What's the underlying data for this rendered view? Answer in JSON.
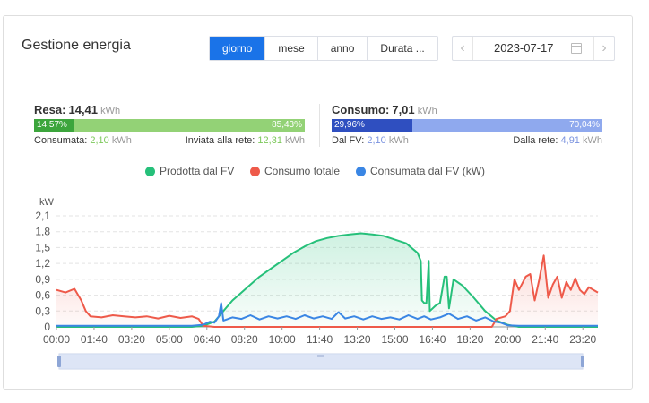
{
  "page": {
    "title": "Gestione energia"
  },
  "tabs": [
    {
      "label": "giorno",
      "active": true
    },
    {
      "label": "mese",
      "active": false
    },
    {
      "label": "anno",
      "active": false
    },
    {
      "label": "Durata ...",
      "active": false
    }
  ],
  "date": {
    "value": "2023-07-17"
  },
  "yield": {
    "label": "Resa:",
    "value": "14,41",
    "unit": "kWh",
    "left_pct": "14,57%",
    "right_pct": "85,43%",
    "left_fraction": 0.1457,
    "consumed_label": "Consumata:",
    "consumed_value": "2,10",
    "consumed_unit": "kWh",
    "fed_label": "Inviata alla rete:",
    "fed_value": "12,31",
    "fed_unit": "kWh",
    "colors": {
      "dark": "#3ca53c",
      "light": "#93d276",
      "value_text": "#7cc85a"
    }
  },
  "consumption": {
    "label": "Consumo:",
    "value": "7,01",
    "unit": "kWh",
    "left_pct": "29,96%",
    "right_pct": "70,04%",
    "left_fraction": 0.2996,
    "fv_label": "Dal FV:",
    "fv_value": "2,10",
    "fv_unit": "kWh",
    "grid_label": "Dalla rete:",
    "grid_value": "4,91",
    "grid_unit": "kWh",
    "colors": {
      "dark": "#2f4fc0",
      "light": "#8fa9ee",
      "value_text": "#7b93df"
    }
  },
  "legend": [
    {
      "label": "Prodotta dal FV",
      "color": "#26c07a"
    },
    {
      "label": "Consumo totale",
      "color": "#ee5a4a"
    },
    {
      "label": "Consumata dal FV (kW)",
      "color": "#3a86e4"
    }
  ],
  "chart_data": {
    "type": "line",
    "ylabel": "kW",
    "ylim": [
      0,
      2.1
    ],
    "yticks": [
      "0",
      "0,3",
      "0,6",
      "0,9",
      "1,2",
      "1,5",
      "1,8",
      "2,1"
    ],
    "xticks": [
      "00:00",
      "01:40",
      "03:20",
      "05:00",
      "06:40",
      "08:20",
      "10:00",
      "11:40",
      "13:20",
      "15:00",
      "16:40",
      "18:20",
      "20:00",
      "21:40",
      "23:20"
    ],
    "x_unit": "hour",
    "grid": true,
    "legend_position": "top",
    "series": [
      {
        "name": "Prodotta dal FV",
        "color": "#26c07a",
        "area": true,
        "points": [
          [
            0,
            0
          ],
          [
            6.0,
            0
          ],
          [
            6.5,
            0.02
          ],
          [
            7.0,
            0.1
          ],
          [
            7.4,
            0.3
          ],
          [
            7.8,
            0.5
          ],
          [
            8.2,
            0.65
          ],
          [
            8.6,
            0.8
          ],
          [
            9.0,
            0.95
          ],
          [
            9.5,
            1.1
          ],
          [
            10.0,
            1.25
          ],
          [
            10.5,
            1.4
          ],
          [
            11.0,
            1.52
          ],
          [
            11.5,
            1.62
          ],
          [
            12.0,
            1.68
          ],
          [
            12.5,
            1.72
          ],
          [
            13.0,
            1.75
          ],
          [
            13.5,
            1.77
          ],
          [
            14.0,
            1.75
          ],
          [
            14.5,
            1.72
          ],
          [
            15.0,
            1.65
          ],
          [
            15.5,
            1.58
          ],
          [
            16.0,
            1.4
          ],
          [
            16.15,
            1.25
          ],
          [
            16.2,
            0.5
          ],
          [
            16.3,
            0.45
          ],
          [
            16.4,
            0.45
          ],
          [
            16.5,
            1.25
          ],
          [
            16.55,
            0.3
          ],
          [
            16.8,
            0.4
          ],
          [
            17.0,
            0.45
          ],
          [
            17.2,
            0.95
          ],
          [
            17.3,
            0.95
          ],
          [
            17.4,
            0.35
          ],
          [
            17.6,
            0.9
          ],
          [
            18.0,
            0.78
          ],
          [
            18.5,
            0.55
          ],
          [
            19.0,
            0.3
          ],
          [
            19.5,
            0.12
          ],
          [
            20.0,
            0.04
          ],
          [
            20.5,
            0
          ],
          [
            24,
            0
          ]
        ]
      },
      {
        "name": "Consumo totale",
        "color": "#ee5a4a",
        "area": true,
        "points": [
          [
            0,
            0.7
          ],
          [
            0.4,
            0.65
          ],
          [
            0.8,
            0.72
          ],
          [
            1.1,
            0.5
          ],
          [
            1.3,
            0.3
          ],
          [
            1.5,
            0.2
          ],
          [
            2.0,
            0.18
          ],
          [
            2.5,
            0.22
          ],
          [
            3.0,
            0.2
          ],
          [
            3.5,
            0.18
          ],
          [
            4.0,
            0.2
          ],
          [
            4.5,
            0.16
          ],
          [
            5.0,
            0.21
          ],
          [
            5.5,
            0.17
          ],
          [
            6.0,
            0.2
          ],
          [
            6.3,
            0.15
          ],
          [
            6.5,
            0.02
          ],
          [
            7.0,
            0
          ],
          [
            19.3,
            0
          ],
          [
            19.5,
            0.15
          ],
          [
            19.9,
            0.2
          ],
          [
            20.1,
            0.3
          ],
          [
            20.3,
            0.9
          ],
          [
            20.5,
            0.7
          ],
          [
            20.8,
            0.95
          ],
          [
            21.0,
            1.0
          ],
          [
            21.2,
            0.5
          ],
          [
            21.4,
            0.9
          ],
          [
            21.6,
            1.35
          ],
          [
            21.8,
            0.55
          ],
          [
            22.0,
            0.8
          ],
          [
            22.2,
            0.95
          ],
          [
            22.4,
            0.55
          ],
          [
            22.6,
            0.85
          ],
          [
            22.8,
            0.7
          ],
          [
            23.0,
            0.92
          ],
          [
            23.2,
            0.7
          ],
          [
            23.4,
            0.62
          ],
          [
            23.6,
            0.75
          ],
          [
            24,
            0.65
          ]
        ]
      },
      {
        "name": "Consumata dal FV (kW)",
        "color": "#3a86e4",
        "area": false,
        "points": [
          [
            0,
            0.02
          ],
          [
            6.0,
            0.02
          ],
          [
            6.5,
            0.04
          ],
          [
            6.8,
            0.1
          ],
          [
            7.0,
            0.08
          ],
          [
            7.2,
            0.2
          ],
          [
            7.3,
            0.45
          ],
          [
            7.4,
            0.12
          ],
          [
            7.8,
            0.18
          ],
          [
            8.2,
            0.15
          ],
          [
            8.6,
            0.22
          ],
          [
            9.0,
            0.14
          ],
          [
            9.4,
            0.2
          ],
          [
            9.8,
            0.16
          ],
          [
            10.2,
            0.2
          ],
          [
            10.6,
            0.15
          ],
          [
            11.0,
            0.22
          ],
          [
            11.4,
            0.16
          ],
          [
            11.8,
            0.2
          ],
          [
            12.2,
            0.15
          ],
          [
            12.5,
            0.28
          ],
          [
            12.8,
            0.16
          ],
          [
            13.2,
            0.2
          ],
          [
            13.6,
            0.14
          ],
          [
            14.0,
            0.2
          ],
          [
            14.4,
            0.15
          ],
          [
            14.8,
            0.18
          ],
          [
            15.2,
            0.14
          ],
          [
            15.6,
            0.22
          ],
          [
            16.0,
            0.15
          ],
          [
            16.3,
            0.2
          ],
          [
            16.6,
            0.14
          ],
          [
            17.0,
            0.18
          ],
          [
            17.4,
            0.25
          ],
          [
            17.8,
            0.15
          ],
          [
            18.2,
            0.2
          ],
          [
            18.6,
            0.12
          ],
          [
            19.0,
            0.18
          ],
          [
            19.4,
            0.1
          ],
          [
            19.7,
            0.08
          ],
          [
            20.0,
            0.03
          ],
          [
            20.5,
            0.02
          ],
          [
            24,
            0.02
          ]
        ]
      }
    ]
  }
}
